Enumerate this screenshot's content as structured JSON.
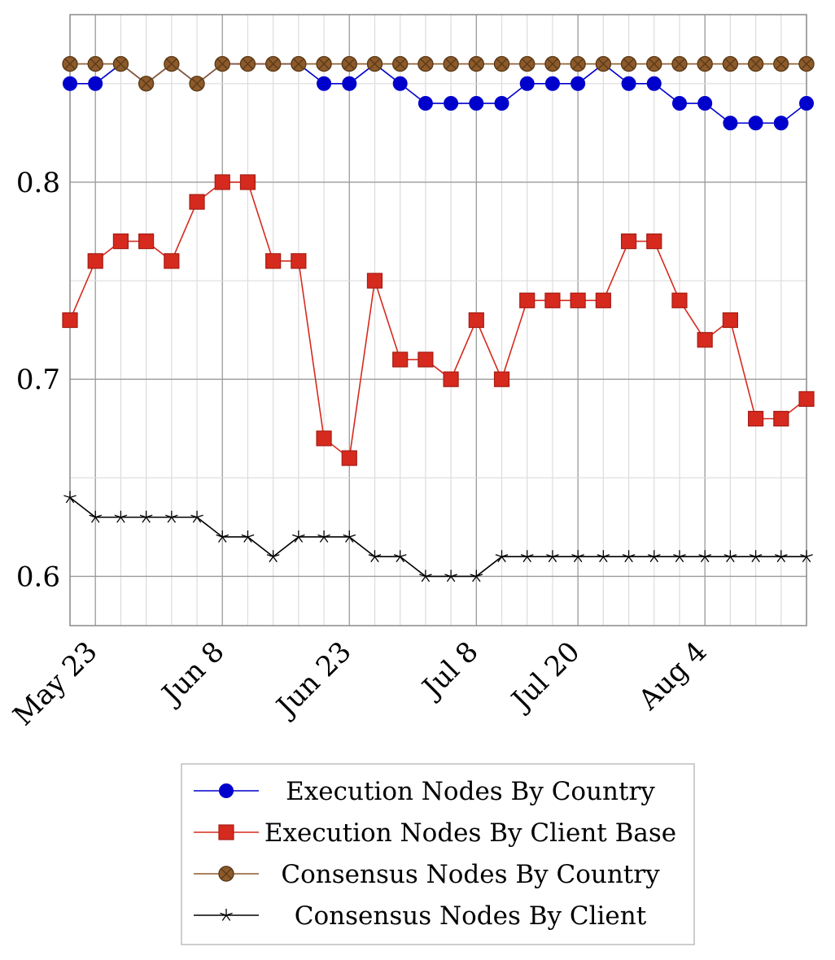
{
  "chart_data": {
    "type": "line",
    "title": "",
    "xlabel": "",
    "ylabel": "",
    "x": [
      0,
      1,
      2,
      3,
      4,
      5,
      6,
      7,
      8,
      9,
      10,
      11,
      12,
      13,
      14,
      15,
      16,
      17,
      18,
      19,
      20,
      21,
      22,
      23,
      24,
      25,
      26,
      27,
      28,
      29
    ],
    "xlim": [
      0,
      29
    ],
    "ylim": [
      0.575,
      0.885
    ],
    "grid": true,
    "legend_position": "bottom",
    "x_ticks": [
      {
        "x": 1,
        "label": "May 23"
      },
      {
        "x": 6,
        "label": "Jun 8"
      },
      {
        "x": 11,
        "label": "Jun 23"
      },
      {
        "x": 16,
        "label": "Jul 8"
      },
      {
        "x": 20,
        "label": "Jul 20"
      },
      {
        "x": 25,
        "label": "Aug 4"
      }
    ],
    "y_ticks": [
      {
        "y": 0.6,
        "label": "0.6"
      },
      {
        "y": 0.7,
        "label": "0.7"
      },
      {
        "y": 0.8,
        "label": "0.8"
      }
    ],
    "series": [
      {
        "name": "Execution Nodes By Country",
        "color": "#0000cc",
        "marker": "circle",
        "values": [
          0.85,
          0.85,
          0.86,
          0.85,
          0.86,
          0.85,
          0.86,
          0.86,
          0.86,
          0.86,
          0.85,
          0.85,
          0.86,
          0.85,
          0.84,
          0.84,
          0.84,
          0.84,
          0.85,
          0.85,
          0.85,
          0.86,
          0.85,
          0.85,
          0.84,
          0.84,
          0.83,
          0.83,
          0.83,
          0.84
        ]
      },
      {
        "name": "Execution Nodes By Client Base",
        "color": "#d62a1e",
        "marker": "square",
        "values": [
          0.73,
          0.76,
          0.77,
          0.77,
          0.76,
          0.79,
          0.8,
          0.8,
          0.76,
          0.76,
          0.67,
          0.66,
          0.75,
          0.71,
          0.71,
          0.7,
          0.73,
          0.7,
          0.74,
          0.74,
          0.74,
          0.74,
          0.77,
          0.77,
          0.74,
          0.72,
          0.73,
          0.68,
          0.68,
          0.69
        ]
      },
      {
        "name": "Consensus Nodes By Country",
        "color": "#8c5a2b",
        "marker": "otimes",
        "values": [
          0.86,
          0.86,
          0.86,
          0.85,
          0.86,
          0.85,
          0.86,
          0.86,
          0.86,
          0.86,
          0.86,
          0.86,
          0.86,
          0.86,
          0.86,
          0.86,
          0.86,
          0.86,
          0.86,
          0.86,
          0.86,
          0.86,
          0.86,
          0.86,
          0.86,
          0.86,
          0.86,
          0.86,
          0.86,
          0.86
        ]
      },
      {
        "name": "Consensus Nodes By Client",
        "color": "#000000",
        "marker": "star",
        "values": [
          0.64,
          0.63,
          0.63,
          0.63,
          0.63,
          0.63,
          0.62,
          0.62,
          0.61,
          0.62,
          0.62,
          0.62,
          0.61,
          0.61,
          0.6,
          0.6,
          0.6,
          0.61,
          0.61,
          0.61,
          0.61,
          0.61,
          0.61,
          0.61,
          0.61,
          0.61,
          0.61,
          0.61,
          0.61,
          0.61
        ]
      }
    ]
  }
}
